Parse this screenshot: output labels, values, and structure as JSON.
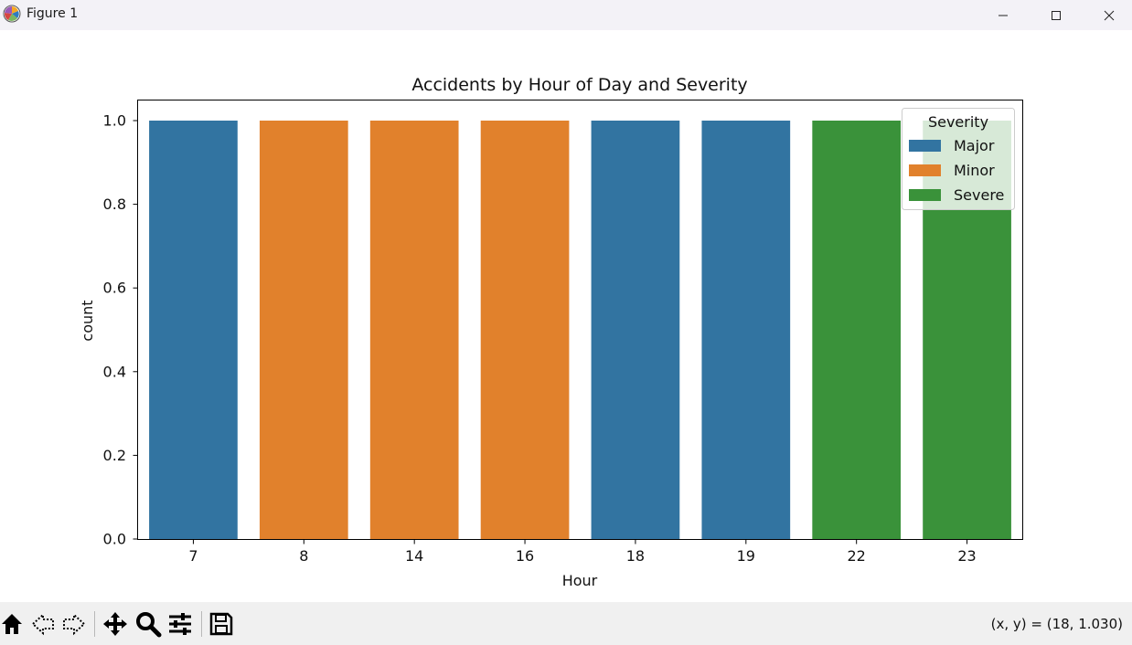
{
  "window": {
    "title": "Figure 1",
    "icons": {
      "app": "matplotlib-logo-icon",
      "minimize": "minimize-icon",
      "maximize": "maximize-icon",
      "close": "close-icon"
    }
  },
  "toolbar": {
    "buttons": [
      {
        "name": "home-button",
        "icon": "home-icon"
      },
      {
        "name": "back-button",
        "icon": "back-arrow-icon"
      },
      {
        "name": "forward-button",
        "icon": "forward-arrow-icon"
      },
      {
        "name": "pan-button",
        "icon": "move-icon"
      },
      {
        "name": "zoom-button",
        "icon": "magnifier-icon"
      },
      {
        "name": "configure-subplots-button",
        "icon": "sliders-icon"
      },
      {
        "name": "save-button",
        "icon": "floppy-disk-icon"
      }
    ],
    "coordinates": "(x, y) = (18, 1.030)"
  },
  "chart_data": {
    "type": "bar",
    "title": "Accidents by Hour of Day and Severity",
    "xlabel": "Hour",
    "ylabel": "count",
    "categories": [
      "7",
      "8",
      "14",
      "16",
      "18",
      "19",
      "22",
      "23"
    ],
    "values": [
      1.0,
      1.0,
      1.0,
      1.0,
      1.0,
      1.0,
      1.0,
      1.0
    ],
    "bar_series": [
      "Major",
      "Minor",
      "Minor",
      "Minor",
      "Major",
      "Major",
      "Severe",
      "Severe"
    ],
    "ylim": [
      0,
      1.05
    ],
    "yticks": [
      0.0,
      0.2,
      0.4,
      0.6,
      0.8,
      1.0
    ],
    "ytick_labels": [
      "0.0",
      "0.2",
      "0.4",
      "0.6",
      "0.8",
      "1.0"
    ],
    "grid": false,
    "legend": {
      "title": "Severity",
      "placement": "upper-right",
      "entries": [
        {
          "name": "Major",
          "color": "#3274a1"
        },
        {
          "name": "Minor",
          "color": "#e1812c"
        },
        {
          "name": "Severe",
          "color": "#3a923a"
        }
      ]
    }
  }
}
